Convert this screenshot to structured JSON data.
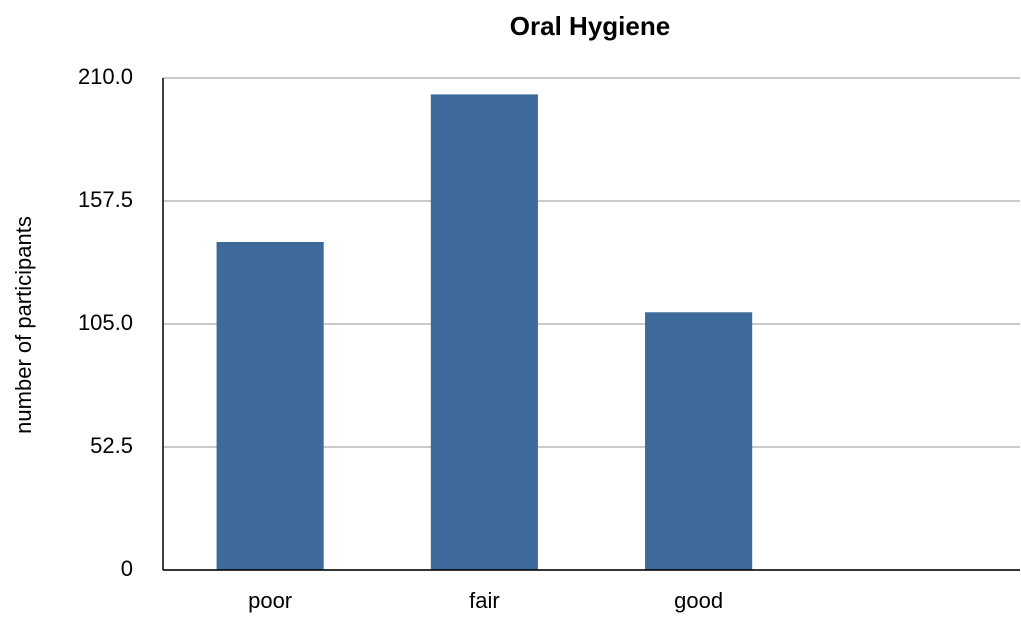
{
  "chart_data": {
    "type": "bar",
    "title": "Oral Hygiene",
    "y_label": "number of participants",
    "categories": [
      "poor",
      "fair",
      "good",
      null
    ],
    "values": [
      140,
      203,
      110,
      null
    ],
    "color": "#3d6a9a",
    "ylim": [
      0,
      210
    ],
    "yticks": [
      0,
      52.5,
      {
        "value": 105,
        "label": "105.0"
      },
      157.5,
      {
        "value": 210,
        "label": "210.0"
      }
    ],
    "grid": true
  }
}
